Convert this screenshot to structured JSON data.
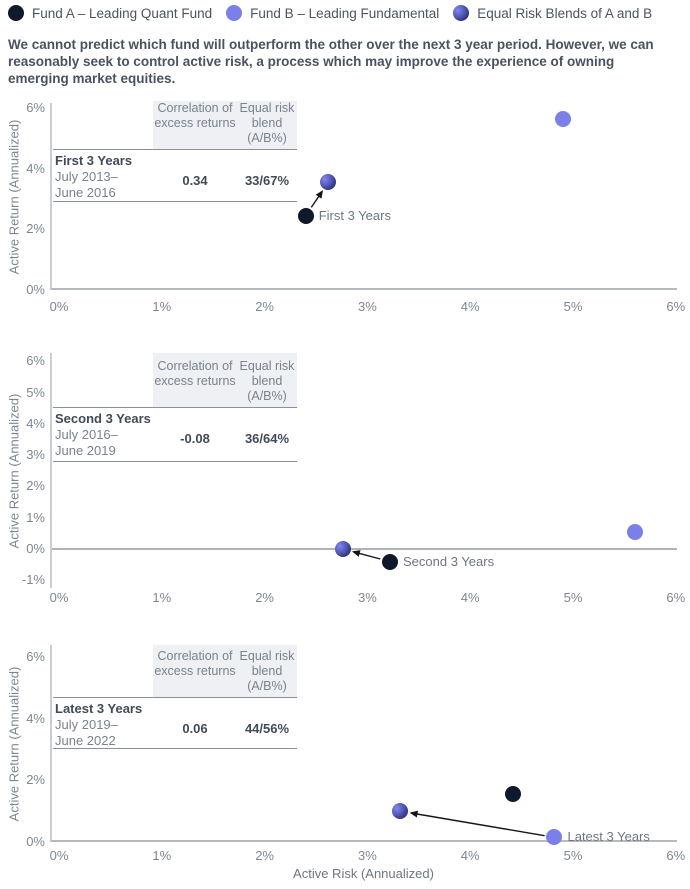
{
  "legend": {
    "items": [
      {
        "key": "fund_a",
        "label": "Fund A – Leading Quant Fund",
        "color": "#10182b"
      },
      {
        "key": "fund_b",
        "label": "Fund B – Leading Fundamental",
        "color": "#7a80e7"
      },
      {
        "key": "blend",
        "label": "Equal Risk Blends of A and B",
        "color": "#3d4494"
      }
    ]
  },
  "intro": "We cannot predict which fund will outperform the other over the next 3 year period. However, we can reasonably seek to control active risk, a process which may improve the experience of owning emerging market equities.",
  "axes": {
    "x_title": "Active Risk (Annualized)",
    "y_title": "Active Return (Annualized)"
  },
  "table_headers": [
    "Correlation of excess returns",
    "Equal risk blend (A/B%)"
  ],
  "colors": {
    "fund_a": "#10182b",
    "fund_b": "#7a80e7",
    "blend_light": "#8287ea",
    "blend_dark": "#141b36",
    "axis_line": "#caced4",
    "zero_line": "#aeb3ba",
    "table_line": "#8a919a",
    "table_header_bg": "#eef0f3",
    "text_dark": "#414b58",
    "text_gray": "#79828d",
    "arrow": "#15161a"
  },
  "chart_data": [
    {
      "type": "scatter",
      "title": "First 3 Years",
      "period_line1": "July 2013–",
      "period_line2": "June 2016",
      "correlation": "0.34",
      "equal_risk_blend_ab": "33/67%",
      "xlim": [
        0,
        6
      ],
      "ylim": [
        0,
        6
      ],
      "x_ticks": [
        0,
        1,
        2,
        3,
        4,
        5,
        6
      ],
      "y_ticks": [
        6,
        4,
        2,
        0
      ],
      "points": [
        {
          "series": "fund_b",
          "x": 4.9,
          "y": 5.65
        },
        {
          "series": "fund_a",
          "x": 2.4,
          "y": 2.45
        },
        {
          "series": "blend",
          "x": 2.62,
          "y": 3.55
        }
      ],
      "annotation": {
        "label": "First 3 Years",
        "at": "fund_a",
        "arrow_from": "fund_a",
        "arrow_to": "blend"
      }
    },
    {
      "type": "scatter",
      "title": "Second 3 Years",
      "period_line1": "July 2016–",
      "period_line2": "June 2019",
      "correlation": "-0.08",
      "equal_risk_blend_ab": "36/64%",
      "xlim": [
        0,
        6
      ],
      "ylim": [
        -1,
        6
      ],
      "x_ticks": [
        0,
        1,
        2,
        3,
        4,
        5,
        6
      ],
      "y_ticks": [
        6,
        5,
        4,
        3,
        2,
        1,
        0,
        -1
      ],
      "points": [
        {
          "series": "fund_b",
          "x": 5.6,
          "y": 0.55
        },
        {
          "series": "fund_a",
          "x": 3.22,
          "y": -0.4
        },
        {
          "series": "blend",
          "x": 2.76,
          "y": 0.0
        }
      ],
      "annotation": {
        "label": "Second 3 Years",
        "at": "fund_a",
        "arrow_from": "fund_a",
        "arrow_to": "blend"
      }
    },
    {
      "type": "scatter",
      "title": "Latest 3 Years",
      "period_line1": "July 2019–",
      "period_line2": "June 2022",
      "correlation": "0.06",
      "equal_risk_blend_ab": "44/56%",
      "xlim": [
        0,
        6
      ],
      "ylim": [
        0,
        6
      ],
      "x_ticks": [
        0,
        1,
        2,
        3,
        4,
        5,
        6
      ],
      "y_ticks": [
        6,
        4,
        2,
        0
      ],
      "points": [
        {
          "series": "fund_a",
          "x": 4.42,
          "y": 1.55
        },
        {
          "series": "fund_b",
          "x": 4.82,
          "y": 0.15
        },
        {
          "series": "blend",
          "x": 3.32,
          "y": 1.0
        }
      ],
      "annotation": {
        "label": "Latest 3 Years",
        "at": "fund_b",
        "arrow_from": "fund_b",
        "arrow_to": "blend"
      }
    }
  ]
}
